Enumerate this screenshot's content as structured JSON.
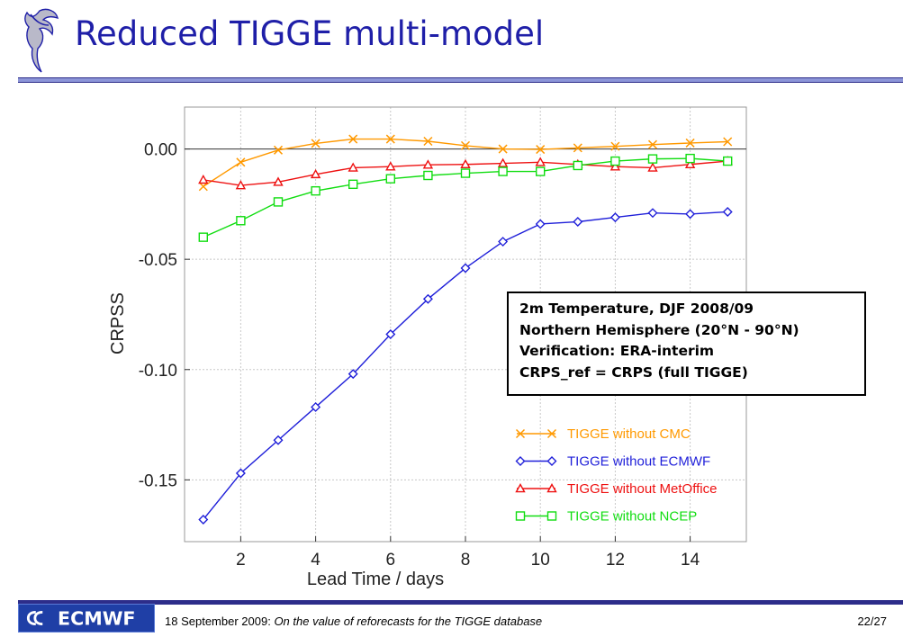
{
  "slide": {
    "title": "Reduced TIGGE multi-model",
    "footer_date": "18 September 2009:",
    "footer_title": "On the value of reforecasts for the TIGGE database",
    "page_number": "22/27",
    "logo_text": "ECMWF"
  },
  "info_box": {
    "lines": [
      "2m Temperature, DJF 2008/09",
      "Northern Hemisphere (20°N - 90°N)",
      "Verification: ERA-interim",
      "CRPS_ref = CRPS (full TIGGE)"
    ]
  },
  "chart_data": {
    "type": "line",
    "xlabel": "Lead Time / days",
    "ylabel": "CRPSS",
    "xlim": [
      0.5,
      15.5
    ],
    "ylim": [
      -0.178,
      0.019
    ],
    "xticks": [
      2,
      4,
      6,
      8,
      10,
      12,
      14
    ],
    "yticks": [
      0.0,
      -0.05,
      -0.1,
      -0.15
    ],
    "ytick_labels": [
      "0.00",
      "-0.05",
      "-0.10",
      "-0.15"
    ],
    "zero_line": true,
    "legend_position": "bottom-right",
    "x": [
      1,
      2,
      3,
      4,
      5,
      6,
      7,
      8,
      9,
      10,
      11,
      12,
      13,
      14,
      15
    ],
    "series": [
      {
        "name": "TIGGE without CMC",
        "color": "#ff9900",
        "marker": "x",
        "values": [
          -0.017,
          -0.006,
          -0.0005,
          0.0025,
          0.0045,
          0.0045,
          0.0035,
          0.0015,
          0.0,
          -0.0002,
          0.0005,
          0.0012,
          0.002,
          0.0027,
          0.0033
        ]
      },
      {
        "name": "TIGGE without ECMWF",
        "color": "#1f1fd9",
        "marker": "diamond",
        "values": [
          -0.168,
          -0.147,
          -0.132,
          -0.117,
          -0.102,
          -0.084,
          -0.068,
          -0.054,
          -0.042,
          -0.034,
          -0.033,
          -0.031,
          -0.029,
          -0.0295,
          -0.0285
        ]
      },
      {
        "name": "TIGGE without MetOffice",
        "color": "#ee1111",
        "marker": "triangle",
        "values": [
          -0.014,
          -0.0165,
          -0.015,
          -0.0115,
          -0.0085,
          -0.008,
          -0.0072,
          -0.007,
          -0.0065,
          -0.006,
          -0.007,
          -0.008,
          -0.0085,
          -0.007,
          -0.0055
        ]
      },
      {
        "name": "TIGGE without NCEP",
        "color": "#11dd11",
        "marker": "square",
        "values": [
          -0.04,
          -0.0325,
          -0.024,
          -0.019,
          -0.016,
          -0.0135,
          -0.012,
          -0.011,
          -0.0102,
          -0.0102,
          -0.0075,
          -0.0055,
          -0.0045,
          -0.0043,
          -0.0055
        ]
      }
    ]
  }
}
